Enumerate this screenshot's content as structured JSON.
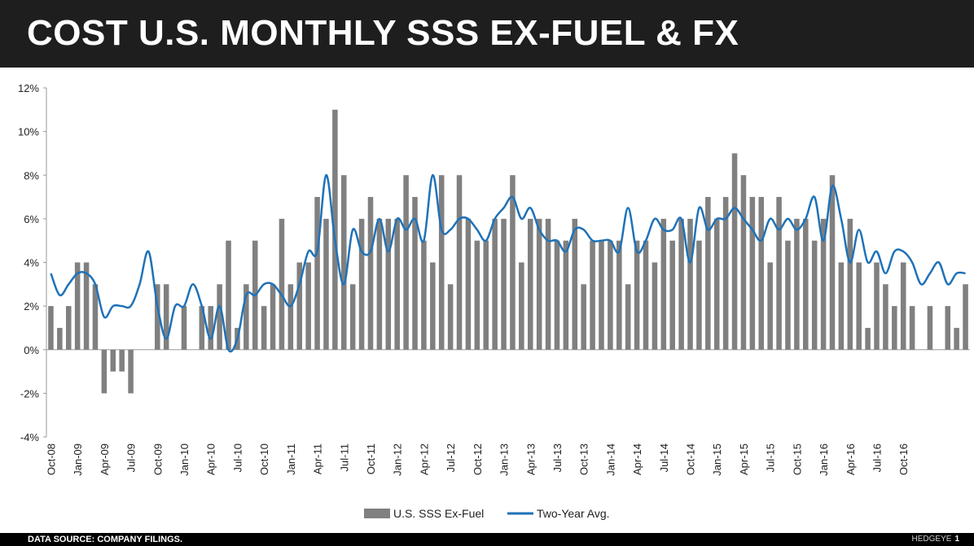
{
  "header": {
    "title": "COST U.S. MONTHLY SSS EX-FUEL & FX"
  },
  "footer": {
    "source": "DATA SOURCE: COMPANY FILINGS.",
    "brand": "HEDGEYE",
    "page": "1"
  },
  "colors": {
    "bar": "#808080",
    "line": "#1f72b8",
    "title_bg": "#1e1e1e"
  },
  "chart_data": {
    "type": "bar",
    "title": "COST U.S. MONTHLY SSS EX-FUEL & FX",
    "x_tick_labels": [
      "Oct-08",
      "Jan-09",
      "Apr-09",
      "Jul-09",
      "Oct-09",
      "Jan-10",
      "Apr-10",
      "Jul-10",
      "Oct-10",
      "Jan-11",
      "Apr-11",
      "Jul-11",
      "Oct-11",
      "Jan-12",
      "Apr-12",
      "Jul-12",
      "Oct-12",
      "Jan-13",
      "Apr-13",
      "Jul-13",
      "Oct-13",
      "Jan-14",
      "Apr-14",
      "Jul-14",
      "Oct-14",
      "Jan-15",
      "Apr-15",
      "Jul-15",
      "Oct-15",
      "Jan-16",
      "Apr-16",
      "Jul-16",
      "Oct-16"
    ],
    "y_tick_labels": [
      "12%",
      "10%",
      "8%",
      "6%",
      "4%",
      "2%",
      "0%",
      "-2%",
      "-4%"
    ],
    "ylim": [
      -4,
      12
    ],
    "y_step": 2,
    "series": [
      {
        "name": "U.S. SSS Ex-Fuel",
        "type": "bar",
        "values": [
          2,
          1,
          2,
          4,
          4,
          3,
          -2,
          -1,
          -1,
          -2,
          null,
          null,
          3,
          3,
          null,
          2,
          null,
          2,
          2,
          3,
          5,
          1,
          3,
          5,
          2,
          3,
          6,
          3,
          4,
          4,
          7,
          6,
          11,
          8,
          3,
          6,
          7,
          6,
          6,
          6,
          8,
          7,
          5,
          4,
          8,
          3,
          8,
          6,
          5,
          5,
          6,
          6,
          8,
          4,
          6,
          6,
          6,
          5,
          5,
          6,
          3,
          5,
          5,
          5,
          5,
          3,
          5,
          5,
          4,
          6,
          5,
          6,
          6,
          5,
          7,
          6,
          7,
          9,
          8,
          7,
          7,
          4,
          7,
          5,
          6,
          6,
          5,
          6,
          8,
          4,
          6,
          4,
          1,
          4,
          3,
          2,
          4,
          2,
          null,
          2,
          null,
          2,
          1,
          3
        ]
      },
      {
        "name": "Two-Year Avg.",
        "type": "line",
        "values": [
          3.5,
          2.5,
          3,
          3.5,
          3.5,
          3,
          1.5,
          2,
          2,
          2,
          3,
          4.5,
          2,
          0.5,
          2,
          2,
          3,
          2,
          0.5,
          2,
          0,
          0.5,
          2.5,
          2.5,
          3,
          3,
          2.5,
          2,
          3,
          4.5,
          4.5,
          8,
          5,
          3,
          5.5,
          4.5,
          4.5,
          6,
          4.5,
          6,
          5.5,
          6,
          5,
          8,
          5.5,
          5.5,
          6,
          6,
          5.5,
          5,
          6,
          6.5,
          7,
          6,
          6.5,
          5.5,
          5,
          5,
          4.5,
          5.5,
          5.5,
          5,
          5,
          5,
          4.5,
          6.5,
          4.5,
          5,
          6,
          5.5,
          5.5,
          6,
          4,
          6.5,
          5.5,
          6,
          6,
          6.5,
          6,
          5.5,
          5,
          6,
          5.5,
          6,
          5.5,
          6,
          7,
          5,
          7.5,
          6,
          4,
          5.5,
          4,
          4.5,
          3.5,
          4.5,
          4.5,
          4,
          3,
          3.5,
          4,
          3,
          3.5,
          3.5
        ]
      }
    ],
    "legend": [
      "U.S. SSS Ex-Fuel",
      "Two-Year Avg."
    ],
    "legend_position": "bottom-center"
  }
}
